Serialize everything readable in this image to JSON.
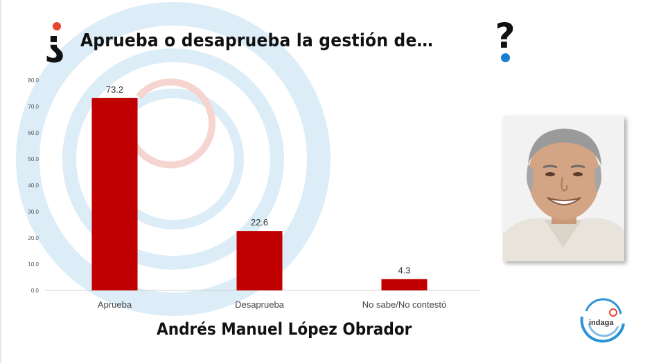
{
  "title": "Aprueba o desaprueba la gestión de…",
  "caption": "Andrés Manuel López Obrador",
  "brand": {
    "name": "indaga"
  },
  "colors": {
    "bar": "#c00000",
    "accent_red": "#e8432e",
    "accent_blue": "#1b7fd1",
    "swirl": "#d8ecf7"
  },
  "chart_data": {
    "type": "bar",
    "categories": [
      "Aprueba",
      "Desaprueba",
      "No sabe/No contestó"
    ],
    "values": [
      73.2,
      22.6,
      4.3
    ],
    "value_labels": [
      "73.2",
      "22.6",
      "4.3"
    ],
    "yticks": [
      "0.0",
      "10.0",
      "20.0",
      "30.0",
      "40.0",
      "50.0",
      "60.0",
      "70.0",
      "80.0"
    ],
    "ylim": [
      0,
      80
    ],
    "title": "Aprueba o desaprueba la gestión de…",
    "xlabel": "",
    "ylabel": "",
    "grid": false,
    "legend": "none"
  }
}
